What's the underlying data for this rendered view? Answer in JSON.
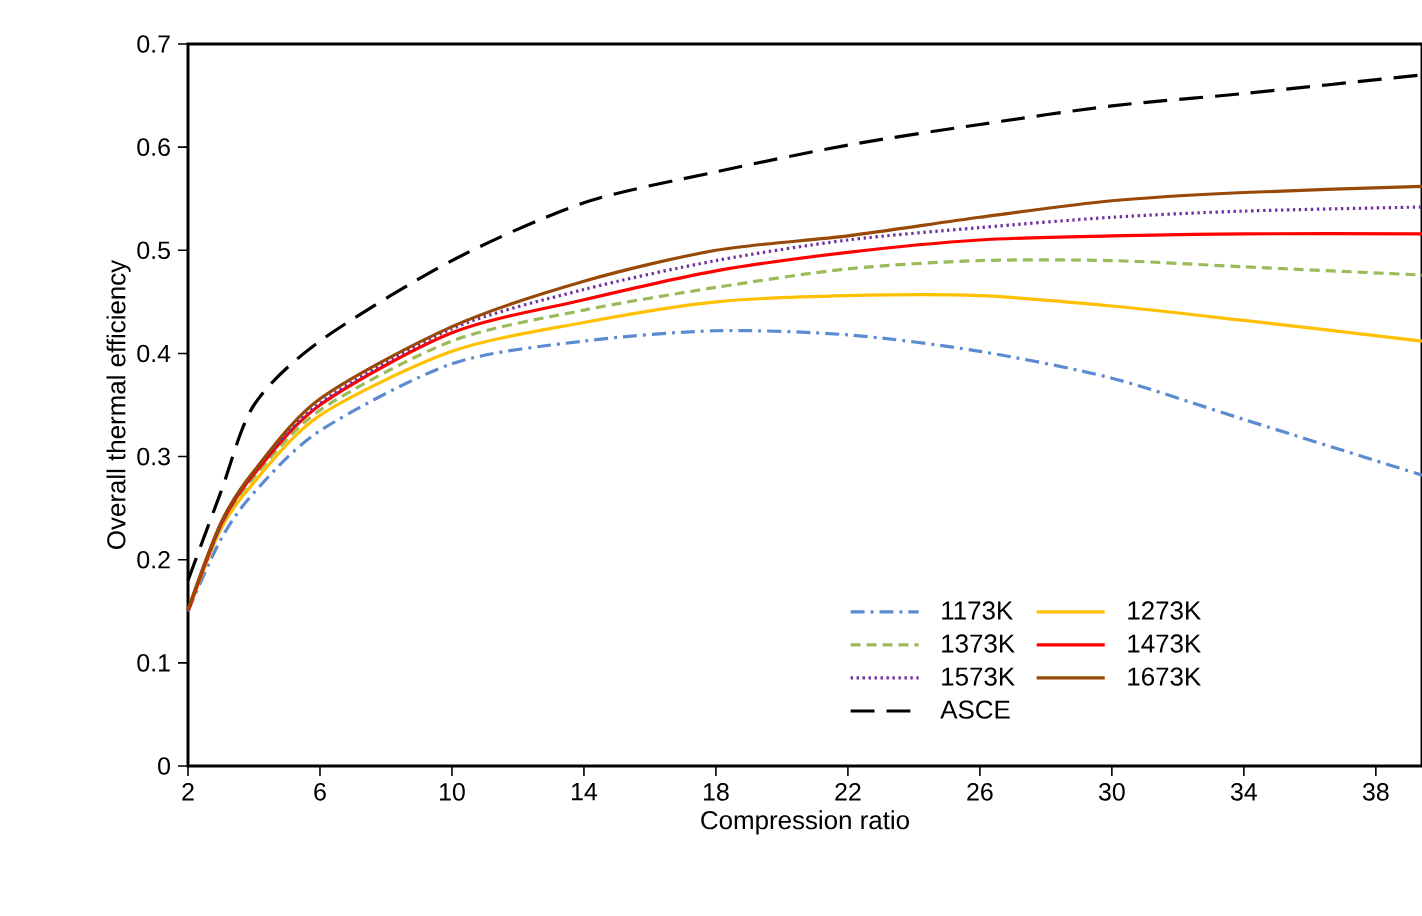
{
  "chart_data": {
    "type": "line",
    "xlabel": "Compression ratio",
    "ylabel": "Overall thermal efficiency",
    "x": [
      2,
      3,
      4,
      6,
      10,
      14,
      18,
      22,
      26,
      30,
      34,
      39.4
    ],
    "series": [
      {
        "name": "1173K",
        "color": "#5b8bd0",
        "line_style": "dashdot",
        "values": [
          0.15,
          0.22,
          0.265,
          0.325,
          0.39,
          0.412,
          0.422,
          0.418,
          0.402,
          0.376,
          0.336,
          0.282
        ]
      },
      {
        "name": "1273K",
        "color": "#ffc000",
        "line_style": "solid",
        "values": [
          0.15,
          0.23,
          0.275,
          0.34,
          0.402,
          0.43,
          0.45,
          0.456,
          0.456,
          0.446,
          0.432,
          0.412
        ]
      },
      {
        "name": "1373K",
        "color": "#9bbb59",
        "line_style": "dashed",
        "values": [
          0.15,
          0.232,
          0.28,
          0.345,
          0.412,
          0.442,
          0.464,
          0.482,
          0.49,
          0.49,
          0.484,
          0.476
        ]
      },
      {
        "name": "1473K",
        "color": "#ff0000",
        "line_style": "solid",
        "values": [
          0.15,
          0.234,
          0.283,
          0.35,
          0.42,
          0.452,
          0.48,
          0.498,
          0.51,
          0.514,
          0.516,
          0.516
        ]
      },
      {
        "name": "1573K",
        "color": "#7030a0",
        "line_style": "dotted",
        "values": [
          0.15,
          0.235,
          0.285,
          0.352,
          0.424,
          0.462,
          0.49,
          0.51,
          0.522,
          0.532,
          0.538,
          0.542
        ]
      },
      {
        "name": "1673K",
        "color": "#984807",
        "line_style": "solid",
        "values": [
          0.152,
          0.236,
          0.286,
          0.356,
          0.426,
          0.47,
          0.5,
          0.514,
          0.532,
          0.548,
          0.556,
          0.562
        ]
      },
      {
        "name": "ASCE",
        "color": "#000000",
        "line_style": "longdashed",
        "values": [
          0.18,
          0.266,
          0.35,
          0.412,
          0.49,
          0.546,
          0.576,
          0.602,
          0.622,
          0.64,
          0.652,
          0.67
        ]
      }
    ],
    "xlim": [
      2,
      39.4
    ],
    "xticks": [
      2,
      6,
      10,
      14,
      18,
      22,
      26,
      30,
      34,
      38
    ],
    "ylim": [
      0,
      0.7
    ],
    "yticks": [
      0,
      0.1,
      0.2,
      0.3,
      0.4,
      0.5,
      0.6,
      0.7
    ],
    "grid": false,
    "legend": "bottom right",
    "marker": "none"
  }
}
